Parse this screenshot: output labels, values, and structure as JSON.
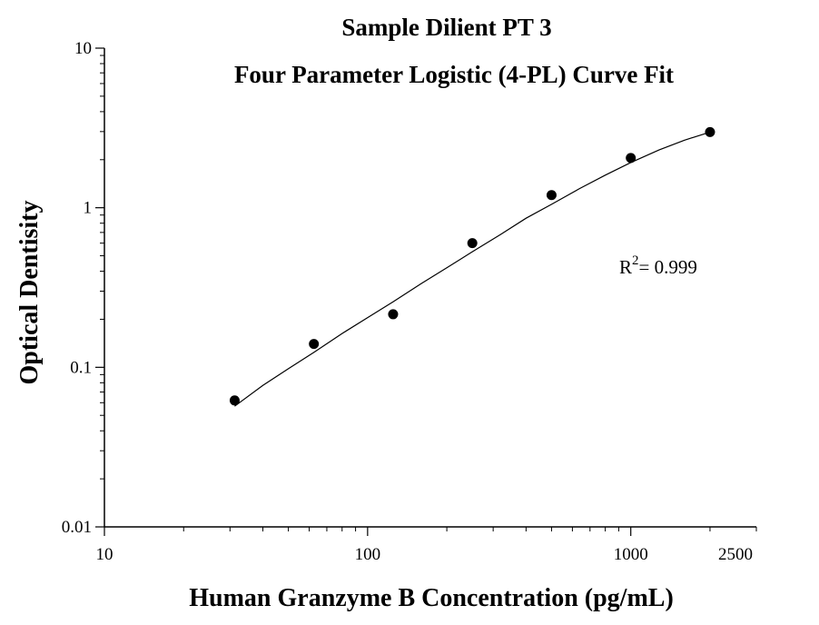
{
  "chart_data": {
    "type": "scatter",
    "title": "Sample Dilient PT 3",
    "subtitle": "Four Parameter Logistic (4-PL) Curve Fit",
    "xlabel": "Human Granzyme B Concentration (pg/mL)",
    "ylabel": "Optical Dentisity",
    "x_scale": "log",
    "y_scale": "log",
    "xlim": [
      10,
      3000
    ],
    "ylim": [
      0.01,
      10
    ],
    "x_ticks": [
      10,
      100,
      1000,
      2500
    ],
    "x_tick_labels": [
      "10",
      "100",
      "1000",
      "2500"
    ],
    "y_ticks": [
      0.01,
      0.1,
      1,
      10
    ],
    "y_tick_labels": [
      "0.01",
      "0.1",
      "1",
      "10"
    ],
    "grid": false,
    "series": [
      {
        "x": [
          31.25,
          62.5,
          125,
          250,
          500,
          1000,
          2000
        ],
        "y": [
          0.062,
          0.14,
          0.215,
          0.6,
          1.2,
          2.05,
          2.98
        ]
      }
    ],
    "fit_curve": {
      "x": [
        31.25,
        40,
        50,
        62.5,
        80,
        100,
        125,
        160,
        200,
        250,
        320,
        400,
        500,
        640,
        800,
        1000,
        1280,
        1600,
        2000
      ],
      "y": [
        0.057,
        0.077,
        0.098,
        0.124,
        0.163,
        0.205,
        0.257,
        0.335,
        0.42,
        0.53,
        0.68,
        0.86,
        1.05,
        1.32,
        1.6,
        1.92,
        2.3,
        2.65,
        2.98
      ]
    },
    "annotation": {
      "prefix": "R",
      "superscript": "2",
      "text": "= 0.999"
    }
  }
}
